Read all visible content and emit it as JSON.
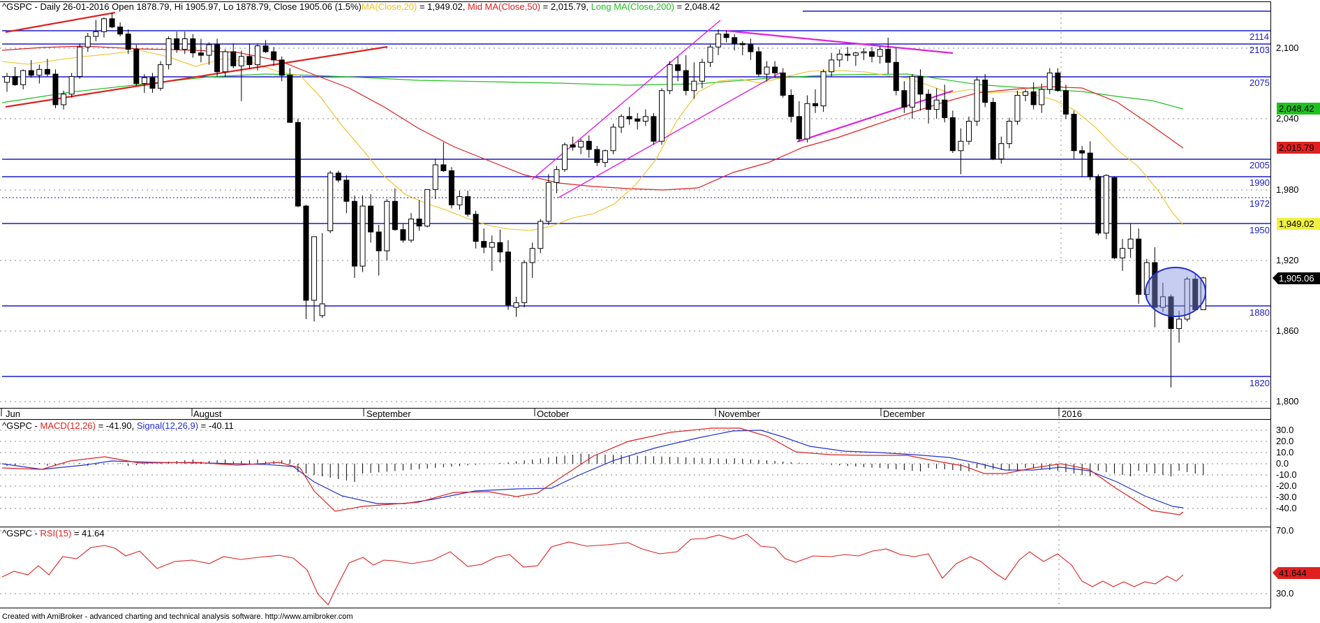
{
  "header": {
    "symbol": "^GSPC",
    "main_prefix": "^GSPC - Daily 26-01-2016 Open 1878.79, Hi 1905.97, Lo 1878.79, Close 1905.06 (1.5%)",
    "ma20_label": "MA(Close,20)",
    "ma20_value": " = 1,949.02, ",
    "ma50_label": "Mid MA(Close,50)",
    "ma50_value": " = 2,015.79, ",
    "ma200_label": "Long MA(Close,200)",
    "ma200_value": " = 2,048.42",
    "macd_prefix": "^GSPC - ",
    "macd_label": "MACD(12,26)",
    "macd_value": " = -41.90, ",
    "signal_label": "Signal(12,26,9)",
    "signal_value": " = -40.11",
    "rsi_prefix": "^GSPC - ",
    "rsi_label": "RSI(15)",
    "rsi_value": " = 41.64"
  },
  "footer": "Created with AmiBroker - advanced charting and technical analysis software. http://www.amibroker.com",
  "colors": {
    "ma20": "#f0c020",
    "ma50": "#e02020",
    "ma200": "#20c020",
    "macd": "#e02020",
    "signal": "#2030d0",
    "rsi": "#e02020",
    "level": "#1a1acc",
    "trend_red": "#e02020",
    "trend_magenta": "#e020e0"
  },
  "chart_data": {
    "type": "candlestick",
    "price_axis": {
      "ylim": [
        1790,
        2150
      ],
      "ticks": [
        "1,800",
        "1,860",
        "1,920",
        "1,980",
        "2,040",
        "2,100"
      ]
    },
    "x_month_labels": [
      "Jun",
      "August",
      "September",
      "October",
      "November",
      "December",
      "2016"
    ],
    "levels": [
      2114,
      2103,
      2075,
      2005,
      1990,
      1972,
      1950,
      1880,
      1820
    ],
    "last_value_tags": {
      "ma200": "2,048.42",
      "ma50": "2,015.79",
      "ma20": "1,949.02",
      "close": "1,905.06"
    },
    "candles_ohlc": [
      [
        2071,
        2079,
        2063,
        2076
      ],
      [
        2076,
        2084,
        2068,
        2069
      ],
      [
        2069,
        2082,
        2065,
        2081
      ],
      [
        2081,
        2090,
        2075,
        2077
      ],
      [
        2077,
        2086,
        2070,
        2082
      ],
      [
        2082,
        2091,
        2076,
        2078
      ],
      [
        2078,
        2082,
        2049,
        2052
      ],
      [
        2052,
        2064,
        2048,
        2061
      ],
      [
        2061,
        2079,
        2058,
        2076
      ],
      [
        2076,
        2104,
        2074,
        2101
      ],
      [
        2101,
        2113,
        2097,
        2110
      ],
      [
        2110,
        2124,
        2106,
        2114
      ],
      [
        2114,
        2126,
        2109,
        2125
      ],
      [
        2125,
        2130,
        2117,
        2118
      ],
      [
        2118,
        2122,
        2110,
        2112
      ],
      [
        2112,
        2116,
        2095,
        2099
      ],
      [
        2099,
        2103,
        2068,
        2070
      ],
      [
        2070,
        2078,
        2062,
        2075
      ],
      [
        2075,
        2079,
        2062,
        2066
      ],
      [
        2066,
        2089,
        2064,
        2086
      ],
      [
        2086,
        2110,
        2082,
        2108
      ],
      [
        2108,
        2114,
        2096,
        2099
      ],
      [
        2099,
        2114,
        2095,
        2108
      ],
      [
        2108,
        2112,
        2092,
        2096
      ],
      [
        2096,
        2108,
        2088,
        2094
      ],
      [
        2094,
        2105,
        2086,
        2103
      ],
      [
        2103,
        2108,
        2076,
        2080
      ],
      [
        2080,
        2099,
        2076,
        2097
      ],
      [
        2097,
        2104,
        2083,
        2085
      ],
      [
        2085,
        2098,
        2055,
        2093
      ],
      [
        2093,
        2104,
        2082,
        2086
      ],
      [
        2086,
        2104,
        2081,
        2102
      ],
      [
        2102,
        2107,
        2096,
        2097
      ],
      [
        2097,
        2101,
        2085,
        2090
      ],
      [
        2090,
        2093,
        2072,
        2077
      ],
      [
        2077,
        2083,
        2037,
        2037
      ],
      [
        2037,
        2040,
        1965,
        1966
      ],
      [
        1966,
        1967,
        1870,
        1886
      ],
      [
        1886,
        1940,
        1868,
        1940
      ],
      [
        1873,
        1943,
        1871,
        1883
      ],
      [
        1945,
        1996,
        1943,
        1994
      ],
      [
        1994,
        1996,
        1986,
        1988
      ],
      [
        1988,
        1992,
        1960,
        1970
      ],
      [
        1970,
        1975,
        1905,
        1915
      ],
      [
        1915,
        1975,
        1910,
        1966
      ],
      [
        1966,
        1976,
        1935,
        1944
      ],
      [
        1944,
        1950,
        1907,
        1928
      ],
      [
        1928,
        1972,
        1920,
        1970
      ],
      [
        1970,
        1981,
        1945,
        1946
      ],
      [
        1946,
        1951,
        1935,
        1937
      ],
      [
        1937,
        1960,
        1935,
        1955
      ],
      [
        1955,
        1971,
        1945,
        1949
      ],
      [
        1949,
        1980,
        1948,
        1980
      ],
      [
        1980,
        2006,
        1972,
        2001
      ],
      [
        2001,
        2020,
        1995,
        1996
      ],
      [
        1996,
        1999,
        1964,
        1967
      ],
      [
        1967,
        1979,
        1963,
        1974
      ],
      [
        1974,
        1979,
        1957,
        1959
      ],
      [
        1959,
        1962,
        1930,
        1936
      ],
      [
        1936,
        1947,
        1926,
        1931
      ],
      [
        1931,
        1941,
        1911,
        1935
      ],
      [
        1935,
        1946,
        1918,
        1927
      ],
      [
        1927,
        1937,
        1878,
        1882
      ],
      [
        1880,
        1889,
        1872,
        1884
      ],
      [
        1884,
        1920,
        1880,
        1918
      ],
      [
        1918,
        1935,
        1905,
        1930
      ],
      [
        1930,
        1955,
        1926,
        1953
      ],
      [
        1953,
        1993,
        1950,
        1986
      ],
      [
        1986,
        2000,
        1977,
        1997
      ],
      [
        1997,
        2020,
        1995,
        2018
      ],
      [
        2018,
        2025,
        2013,
        2016
      ],
      [
        2016,
        2023,
        2010,
        2021
      ],
      [
        2021,
        2026,
        2007,
        2014
      ],
      [
        2014,
        2017,
        2000,
        2003
      ],
      [
        2003,
        2014,
        1999,
        2013
      ],
      [
        2013,
        2036,
        2010,
        2033
      ],
      [
        2033,
        2044,
        2028,
        2042
      ],
      [
        2042,
        2050,
        2035,
        2040
      ],
      [
        2040,
        2045,
        2031,
        2038
      ],
      [
        2038,
        2048,
        2034,
        2042
      ],
      [
        2042,
        2045,
        2018,
        2021
      ],
      [
        2021,
        2066,
        2018,
        2064
      ],
      [
        2064,
        2089,
        2061,
        2086
      ],
      [
        2086,
        2093,
        2072,
        2081
      ],
      [
        2081,
        2094,
        2060,
        2064
      ],
      [
        2064,
        2088,
        2057,
        2072
      ],
      [
        2072,
        2091,
        2066,
        2088
      ],
      [
        2088,
        2103,
        2084,
        2101
      ],
      [
        2101,
        2116,
        2094,
        2112
      ],
      [
        2112,
        2115,
        2105,
        2109
      ],
      [
        2109,
        2112,
        2098,
        2104
      ],
      [
        2104,
        2106,
        2094,
        2103
      ],
      [
        2103,
        2108,
        2090,
        2097
      ],
      [
        2097,
        2101,
        2076,
        2078
      ],
      [
        2078,
        2089,
        2072,
        2084
      ],
      [
        2084,
        2089,
        2075,
        2079
      ],
      [
        2079,
        2083,
        2058,
        2060
      ],
      [
        2060,
        2065,
        2037,
        2042
      ],
      [
        2042,
        2055,
        2021,
        2023
      ],
      [
        2023,
        2060,
        2020,
        2053
      ],
      [
        2053,
        2065,
        2045,
        2051
      ],
      [
        2051,
        2082,
        2046,
        2080
      ],
      [
        2080,
        2096,
        2076,
        2090
      ],
      [
        2090,
        2099,
        2084,
        2095
      ],
      [
        2095,
        2101,
        2089,
        2094
      ],
      [
        2094,
        2097,
        2085,
        2096
      ],
      [
        2096,
        2100,
        2090,
        2097
      ],
      [
        2097,
        2101,
        2088,
        2093
      ],
      [
        2093,
        2102,
        2087,
        2099
      ],
      [
        2099,
        2109,
        2078,
        2088
      ],
      [
        2088,
        2100,
        2060,
        2064
      ],
      [
        2064,
        2072,
        2045,
        2050
      ],
      [
        2050,
        2078,
        2040,
        2076
      ],
      [
        2076,
        2082,
        2047,
        2061
      ],
      [
        2061,
        2065,
        2036,
        2048
      ],
      [
        2048,
        2066,
        2040,
        2056
      ],
      [
        2056,
        2069,
        2037,
        2041
      ],
      [
        2041,
        2047,
        2011,
        2013
      ],
      [
        2013,
        2032,
        1993,
        2021
      ],
      [
        2021,
        2042,
        2018,
        2038
      ],
      [
        2038,
        2076,
        2034,
        2073
      ],
      [
        2073,
        2078,
        2050,
        2054
      ],
      [
        2054,
        2058,
        2005,
        2006
      ],
      [
        2006,
        2025,
        2002,
        2019
      ],
      [
        2019,
        2041,
        2015,
        2038
      ],
      [
        2038,
        2064,
        2035,
        2060
      ],
      [
        2060,
        2065,
        2055,
        2063
      ],
      [
        2063,
        2071,
        2048,
        2052
      ],
      [
        2052,
        2070,
        2045,
        2065
      ],
      [
        2065,
        2083,
        2061,
        2079
      ],
      [
        2079,
        2083,
        2063,
        2064
      ],
      [
        2064,
        2069,
        2040,
        2044
      ],
      [
        2044,
        2047,
        2006,
        2013
      ],
      [
        2013,
        2017,
        1991,
        2011
      ],
      [
        2011,
        2021,
        1988,
        1991
      ],
      [
        1991,
        1993,
        1941,
        1943
      ],
      [
        1943,
        1993,
        1938,
        1992
      ],
      [
        1990,
        1991,
        1921,
        1922
      ],
      [
        1922,
        1938,
        1911,
        1930
      ],
      [
        1930,
        1951,
        1922,
        1938
      ],
      [
        1938,
        1947,
        1883,
        1891
      ],
      [
        1891,
        1921,
        1886,
        1918
      ],
      [
        1918,
        1931,
        1863,
        1880
      ],
      [
        1880,
        1901,
        1876,
        1889
      ],
      [
        1889,
        1891,
        1812,
        1862
      ],
      [
        1862,
        1877,
        1850,
        1870
      ],
      [
        1870,
        1906,
        1868,
        1904
      ],
      [
        1904,
        1908,
        1877,
        1878
      ],
      [
        1878,
        1906,
        1878,
        1905
      ]
    ]
  }
}
